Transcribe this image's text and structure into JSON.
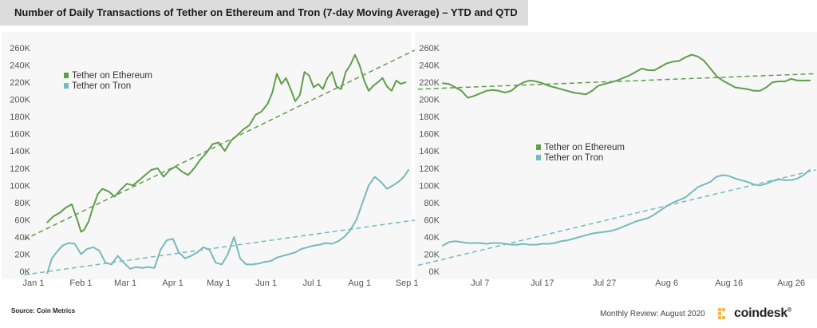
{
  "header": {
    "title": "Number of Daily Transactions of Tether on Ethereum and Tron (7-day Moving Average) – YTD and QTD"
  },
  "footer": {
    "source": "Source: Coin Metrics",
    "review": "Monthly Review: August 2020",
    "brand": "coindesk",
    "brand_mark": "®"
  },
  "colors": {
    "ethereum": "#5f9e4b",
    "tron": "#76b9be",
    "brand_accent": "#f4b63f"
  },
  "chart_data": [
    {
      "type": "line",
      "title": "",
      "xlabel": "",
      "ylabel": "",
      "ylim": [
        0,
        260000
      ],
      "yticks": [
        "0K",
        "20K",
        "40K",
        "60K",
        "80K",
        "100K",
        "120K",
        "140K",
        "160K",
        "180K",
        "200K",
        "220K",
        "240K",
        "260K"
      ],
      "xlim": [
        1,
        246
      ],
      "xticks": [
        {
          "label": "Jan 1",
          "x": 1
        },
        {
          "label": "Feb 1",
          "x": 32
        },
        {
          "label": "Mar 1",
          "x": 61
        },
        {
          "label": "Apr 1",
          "x": 92
        },
        {
          "label": "May 1",
          "x": 122
        },
        {
          "label": "Jun 1",
          "x": 153
        },
        {
          "label": "Jul 1",
          "x": 183
        },
        {
          "label": "Aug 1",
          "x": 214
        },
        {
          "label": "Sep 1",
          "x": 245
        }
      ],
      "legend": "top-left",
      "grid": false,
      "series": [
        {
          "name": "Tether on Ethereum",
          "color": "#5f9e4b",
          "x": [
            10,
            14,
            18,
            22,
            26,
            30,
            32,
            34,
            37,
            40,
            43,
            46,
            50,
            54,
            58,
            62,
            66,
            70,
            74,
            78,
            82,
            86,
            90,
            94,
            98,
            102,
            106,
            110,
            114,
            118,
            122,
            126,
            130,
            134,
            138,
            142,
            146,
            150,
            154,
            157,
            160,
            163,
            166,
            169,
            172,
            175,
            178,
            181,
            184,
            187,
            190,
            193,
            196,
            199,
            202,
            205,
            208,
            211,
            214,
            217,
            220,
            223,
            226,
            229,
            232,
            235,
            238,
            241,
            244
          ],
          "values": [
            57000,
            64000,
            68000,
            74000,
            78000,
            58000,
            46000,
            48000,
            58000,
            75000,
            90000,
            96000,
            93000,
            87000,
            95000,
            102000,
            100000,
            106000,
            112000,
            118000,
            120000,
            110000,
            118000,
            122000,
            116000,
            112000,
            120000,
            130000,
            138000,
            148000,
            150000,
            140000,
            152000,
            158000,
            165000,
            170000,
            182000,
            186000,
            195000,
            208000,
            230000,
            218000,
            225000,
            212000,
            198000,
            205000,
            232000,
            228000,
            214000,
            218000,
            212000,
            225000,
            232000,
            215000,
            212000,
            232000,
            240000,
            252000,
            240000,
            222000,
            210000,
            216000,
            220000,
            225000,
            215000,
            210000,
            222000,
            218000,
            220000
          ]
        },
        {
          "name": "Tether on Tron",
          "color": "#76b9be",
          "x": [
            10,
            13,
            16,
            20,
            24,
            28,
            32,
            36,
            40,
            44,
            48,
            52,
            56,
            60,
            64,
            68,
            72,
            76,
            80,
            84,
            88,
            92,
            96,
            100,
            104,
            108,
            112,
            116,
            120,
            124,
            128,
            132,
            136,
            140,
            144,
            148,
            152,
            156,
            160,
            164,
            168,
            172,
            176,
            180,
            184,
            188,
            192,
            196,
            200,
            204,
            208,
            212,
            216,
            220,
            224,
            228,
            232,
            236,
            240,
            243,
            246
          ],
          "values": [
            -2000,
            15000,
            22000,
            30000,
            33000,
            32000,
            20000,
            26000,
            28000,
            24000,
            10000,
            8000,
            18000,
            10000,
            3000,
            5000,
            4000,
            5000,
            4000,
            25000,
            36000,
            38000,
            22000,
            15000,
            18000,
            22000,
            28000,
            25000,
            10000,
            8000,
            20000,
            40000,
            15000,
            8000,
            8000,
            9000,
            11000,
            12000,
            16000,
            18000,
            20000,
            22000,
            26000,
            28000,
            30000,
            31000,
            33000,
            32000,
            35000,
            40000,
            48000,
            60000,
            80000,
            100000,
            110000,
            104000,
            96000,
            100000,
            105000,
            110000,
            118000
          ]
        }
      ],
      "trendlines": [
        {
          "series": "Tether on Ethereum",
          "from": [
            -5,
            37000
          ],
          "to": [
            252,
            259000
          ]
        },
        {
          "series": "Tether on Tron",
          "from": [
            -5,
            -4000
          ],
          "to": [
            252,
            60000
          ]
        }
      ]
    },
    {
      "type": "line",
      "title": "",
      "xlabel": "",
      "ylabel": "",
      "ylim": [
        0,
        260000
      ],
      "yticks": [
        "0K",
        "20K",
        "40K",
        "60K",
        "80K",
        "100K",
        "120K",
        "140K",
        "160K",
        "180K",
        "200K",
        "220K",
        "240K",
        "260K"
      ],
      "xlim": [
        1,
        60
      ],
      "xticks": [
        {
          "label": "Jul 7",
          "x": 7
        },
        {
          "label": "Jul 17",
          "x": 17
        },
        {
          "label": "Jul 27",
          "x": 27
        },
        {
          "label": "Aug 6",
          "x": 37
        },
        {
          "label": "Aug 16",
          "x": 47
        },
        {
          "label": "Aug 26",
          "x": 57
        }
      ],
      "legend": "center-left",
      "grid": false,
      "series": [
        {
          "name": "Tether on Ethereum",
          "color": "#5f9e4b",
          "x": [
            1,
            2,
            3,
            4,
            5,
            6,
            7,
            8,
            9,
            10,
            11,
            12,
            13,
            14,
            15,
            16,
            17,
            18,
            19,
            20,
            21,
            22,
            23,
            24,
            25,
            26,
            27,
            28,
            29,
            30,
            31,
            32,
            33,
            34,
            35,
            36,
            37,
            38,
            39,
            40,
            41,
            42,
            43,
            44,
            45,
            46,
            47,
            48,
            49,
            50,
            51,
            52,
            53,
            54,
            55,
            56,
            57,
            58,
            59,
            60
          ],
          "values": [
            219000,
            218000,
            214000,
            210000,
            202000,
            204000,
            207000,
            210000,
            211000,
            210000,
            208000,
            210000,
            216000,
            220000,
            222000,
            221000,
            219000,
            216000,
            214000,
            212000,
            210000,
            208000,
            207000,
            206000,
            210000,
            216000,
            218000,
            220000,
            222000,
            225000,
            228000,
            232000,
            236000,
            234000,
            234000,
            238000,
            242000,
            244000,
            245000,
            249000,
            252000,
            250000,
            245000,
            236000,
            227000,
            222000,
            218000,
            214000,
            213000,
            212000,
            210000,
            210000,
            214000,
            220000,
            221000,
            221000,
            224000,
            222000,
            222000,
            222000
          ]
        },
        {
          "name": "Tether on Tron",
          "color": "#76b9be",
          "x": [
            1,
            2,
            3,
            4,
            5,
            6,
            7,
            8,
            9,
            10,
            11,
            12,
            13,
            14,
            15,
            16,
            17,
            18,
            19,
            20,
            21,
            22,
            23,
            24,
            25,
            26,
            27,
            28,
            29,
            30,
            31,
            32,
            33,
            34,
            35,
            36,
            37,
            38,
            39,
            40,
            41,
            42,
            43,
            44,
            45,
            46,
            47,
            48,
            49,
            50,
            51,
            52,
            53,
            54,
            55,
            56,
            57,
            58,
            59,
            60
          ],
          "values": [
            30000,
            34000,
            35000,
            34000,
            33000,
            33000,
            33000,
            32000,
            33000,
            33000,
            32000,
            31000,
            31000,
            32000,
            31000,
            31000,
            32000,
            32000,
            33000,
            35000,
            36000,
            38000,
            40000,
            42000,
            44000,
            45000,
            46000,
            47000,
            49000,
            52000,
            55000,
            58000,
            60000,
            62000,
            66000,
            71000,
            76000,
            80000,
            83000,
            86000,
            92000,
            98000,
            101000,
            104000,
            110000,
            112000,
            111000,
            108000,
            106000,
            104000,
            101000,
            100000,
            102000,
            105000,
            107000,
            106000,
            106000,
            108000,
            112000,
            118000
          ]
        }
      ],
      "trendlines": [
        {
          "series": "Tether on Ethereum",
          "from": [
            -3,
            212000
          ],
          "to": [
            61,
            230000
          ]
        },
        {
          "series": "Tether on Tron",
          "from": [
            -3,
            7000
          ],
          "to": [
            61,
            118000
          ]
        }
      ]
    }
  ]
}
